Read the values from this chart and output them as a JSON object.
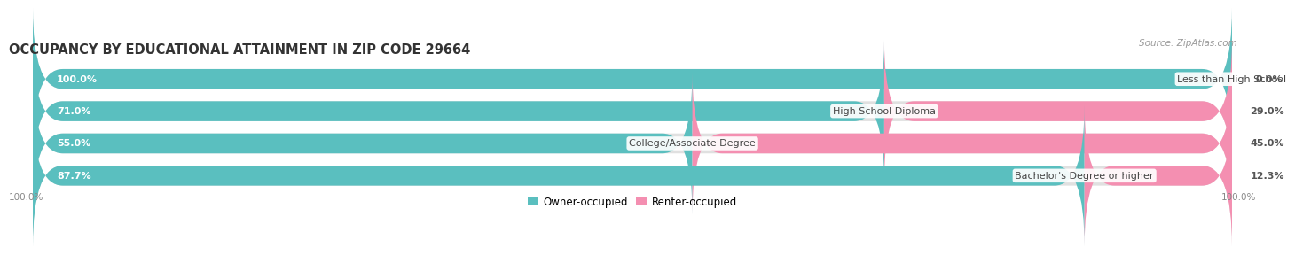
{
  "title": "OCCUPANCY BY EDUCATIONAL ATTAINMENT IN ZIP CODE 29664",
  "source": "Source: ZipAtlas.com",
  "categories": [
    "Less than High School",
    "High School Diploma",
    "College/Associate Degree",
    "Bachelor's Degree or higher"
  ],
  "owner_values": [
    100.0,
    71.0,
    55.0,
    87.7
  ],
  "renter_values": [
    0.0,
    29.0,
    45.0,
    12.3
  ],
  "owner_color": "#5ABFBF",
  "renter_color": "#F48FB1",
  "owner_label": "Owner-occupied",
  "renter_label": "Renter-occupied",
  "bar_bg_color": "#e0e0e0",
  "bar_height": 0.62,
  "title_fontsize": 10.5,
  "label_fontsize": 8,
  "value_fontsize": 8,
  "axis_label_bottom": "100.0%",
  "axis_label_bottom_right": "100.0%"
}
